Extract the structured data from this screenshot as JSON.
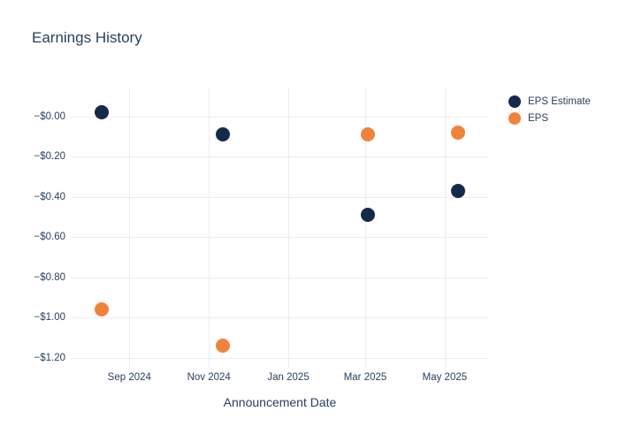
{
  "colors": {
    "text": "#2a3f5f",
    "grid": "#e9edf5",
    "background": "#ffffff",
    "eps_estimate": "#16294c",
    "eps": "#f0833c"
  },
  "chart_data": {
    "type": "scatter",
    "title": "Earnings History",
    "xlabel": "Announcement Date",
    "ylabel": "",
    "grid": true,
    "legend_position": "right",
    "marker_size": 16,
    "x_tick_labels": [
      "Sep 2024",
      "Nov 2024",
      "Jan 2025",
      "Mar 2025",
      "May 2025"
    ],
    "x_tick_dates": [
      "2024-09-01",
      "2024-11-01",
      "2025-01-01",
      "2025-03-01",
      "2025-05-01"
    ],
    "xlim": [
      "2024-07-18",
      "2025-06-04"
    ],
    "y_ticks": [
      0,
      -0.2,
      -0.4,
      -0.6,
      -0.8,
      -1.0,
      -1.2
    ],
    "y_tick_labels": [
      "−$0.00",
      "−$0.20",
      "−$0.40",
      "−$0.60",
      "−$0.80",
      "−$1.00",
      "−$1.20"
    ],
    "ylim": [
      -1.25,
      0.14
    ],
    "series": [
      {
        "name": "EPS Estimate",
        "color": "#16294c",
        "x": [
          "2024-08-11",
          "2024-11-12",
          "2025-03-03",
          "2025-05-11"
        ],
        "y": [
          0.02,
          -0.09,
          -0.49,
          -0.37
        ]
      },
      {
        "name": "EPS",
        "color": "#f0833c",
        "x": [
          "2024-08-11",
          "2024-11-12",
          "2025-03-03",
          "2025-05-11"
        ],
        "y": [
          -0.96,
          -1.14,
          -0.09,
          -0.08
        ]
      }
    ]
  }
}
